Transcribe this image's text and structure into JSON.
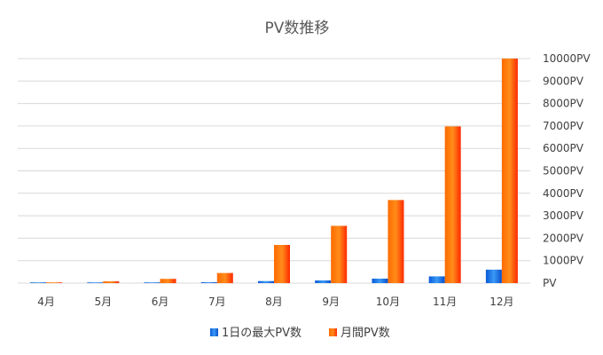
{
  "chart_data": {
    "type": "bar",
    "title": "PV数推移",
    "categories": [
      "4月",
      "5月",
      "6月",
      "7月",
      "8月",
      "9月",
      "10月",
      "11月",
      "12月"
    ],
    "series": [
      {
        "name": "1日の最大PV数",
        "values": [
          5,
          15,
          25,
          40,
          90,
          120,
          200,
          300,
          600
        ],
        "color": "#1f6fe0"
      },
      {
        "name": "月間PV数",
        "values": [
          20,
          80,
          190,
          450,
          1700,
          2550,
          3700,
          6980,
          10000
        ],
        "color": "#ff4a10"
      }
    ],
    "y_tick_labels": [
      "PV",
      "1000PV",
      "2000PV",
      "3000PV",
      "4000PV",
      "5000PV",
      "6000PV",
      "7000PV",
      "8000PV",
      "9000PV",
      "10000PV"
    ],
    "ylim": [
      0,
      10000
    ],
    "y_axis_position": "right",
    "grid": true,
    "legend_position": "bottom"
  }
}
